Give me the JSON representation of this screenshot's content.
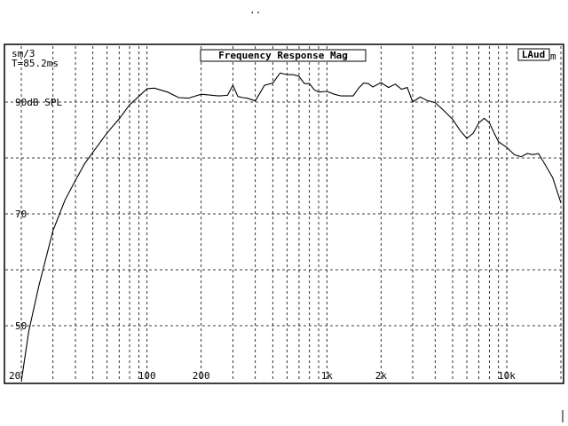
{
  "top_marks": "..",
  "chart_data": {
    "type": "line",
    "title": "Frequency Response Mag",
    "badge": "LAud",
    "badge_suffix": "m",
    "info_lines": [
      "sm/3",
      "T=85.2ms"
    ],
    "x_scale": "log",
    "xlim": [
      20,
      20000
    ],
    "ylim": [
      40,
      100
    ],
    "grid": true,
    "x_tick_labels": [
      {
        "value": 20,
        "label": "20"
      },
      {
        "value": 100,
        "label": "100"
      },
      {
        "value": 200,
        "label": "200"
      },
      {
        "value": 1000,
        "label": "1k"
      },
      {
        "value": 2000,
        "label": "2k"
      },
      {
        "value": 10000,
        "label": "10k"
      }
    ],
    "y_tick_labels": [
      {
        "value": 90,
        "label": "90dB SPL"
      },
      {
        "value": 70,
        "label": "70"
      },
      {
        "value": 50,
        "label": "50"
      }
    ],
    "series": [
      {
        "x": [
          20,
          22,
          25,
          30,
          35,
          40,
          45,
          50,
          60,
          70,
          80,
          90,
          100,
          110,
          130,
          150,
          170,
          200,
          250,
          280,
          300,
          320,
          340,
          360,
          400,
          450,
          500,
          550,
          600,
          650,
          700,
          750,
          800,
          850,
          900,
          1000,
          1100,
          1200,
          1400,
          1500,
          1600,
          1700,
          1800,
          2000,
          2200,
          2400,
          2600,
          2800,
          3000,
          3300,
          3600,
          4000,
          4500,
          5000,
          5500,
          6000,
          6500,
          7000,
          7500,
          8000,
          8500,
          9000,
          10000,
          11000,
          12000,
          13000,
          14000,
          15000,
          16000,
          18000,
          20000
        ],
        "y": [
          40,
          49,
          57,
          67,
          72.5,
          76,
          79,
          81,
          84.5,
          87,
          89.5,
          91,
          92.4,
          92.5,
          91.8,
          90.8,
          90.7,
          91.4,
          91.1,
          91.2,
          93,
          91,
          90.8,
          90.7,
          90.2,
          93,
          93.4,
          95.2,
          94.9,
          94.9,
          94.6,
          93.3,
          93.3,
          92.2,
          91.8,
          91.9,
          91.4,
          91.1,
          91.1,
          92.5,
          93.4,
          93.3,
          92.7,
          93.5,
          92.6,
          93.2,
          92.3,
          92.6,
          90,
          90.9,
          90.3,
          89.9,
          88.4,
          86.9,
          84.9,
          83.5,
          84.4,
          86.3,
          87.1,
          86.3,
          84.5,
          82.9,
          81.9,
          80.6,
          80.2,
          80.8,
          80.6,
          80.8,
          79.3,
          76.5,
          72
        ]
      }
    ]
  }
}
